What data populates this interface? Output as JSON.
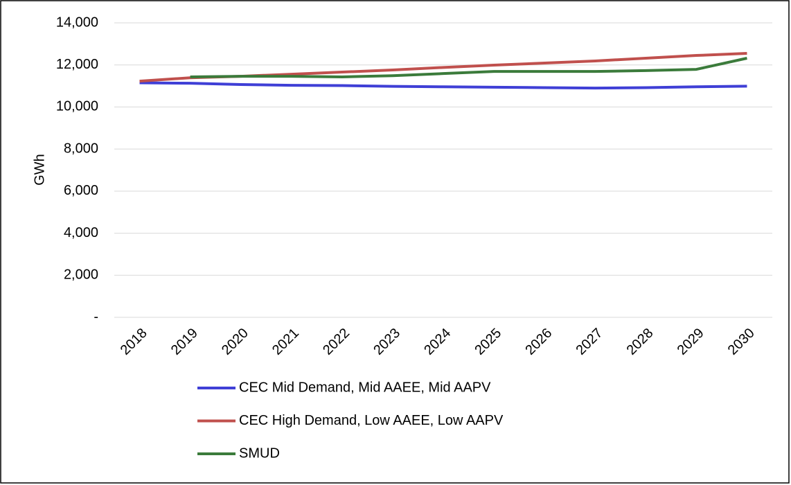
{
  "chart_data": {
    "type": "line",
    "y_label": "GWh",
    "categories": [
      "2018",
      "2019",
      "2020",
      "2021",
      "2022",
      "2023",
      "2024",
      "2025",
      "2026",
      "2027",
      "2028",
      "2029",
      "2030"
    ],
    "series": [
      {
        "name": "CEC Mid Demand, Mid AAEE, Mid AAPV",
        "color": "#3f3fd6",
        "values": [
          11150,
          11130,
          11070,
          11030,
          11020,
          10980,
          10960,
          10940,
          10920,
          10900,
          10920,
          10960,
          10990
        ]
      },
      {
        "name": "CEC High Demand, Low AAEE, Low AAPV",
        "color": "#c0504d",
        "values": [
          11230,
          11390,
          11460,
          11560,
          11660,
          11760,
          11880,
          11990,
          12090,
          12190,
          12320,
          12450,
          12550
        ]
      },
      {
        "name": "SMUD",
        "color": "#3b7b3b",
        "values": [
          null,
          11430,
          11460,
          11460,
          11430,
          11490,
          11590,
          11690,
          11690,
          11690,
          11730,
          11790,
          12320
        ]
      }
    ],
    "ylim": [
      0,
      14000
    ],
    "yticks": [
      {
        "value": 0,
        "label": "-"
      },
      {
        "value": 2000,
        "label": "2,000"
      },
      {
        "value": 4000,
        "label": "4,000"
      },
      {
        "value": 6000,
        "label": "6,000"
      },
      {
        "value": 8000,
        "label": "8,000"
      },
      {
        "value": 10000,
        "label": "10,000"
      },
      {
        "value": 12000,
        "label": "12,000"
      },
      {
        "value": 14000,
        "label": "14,000"
      }
    ],
    "grid": true
  }
}
